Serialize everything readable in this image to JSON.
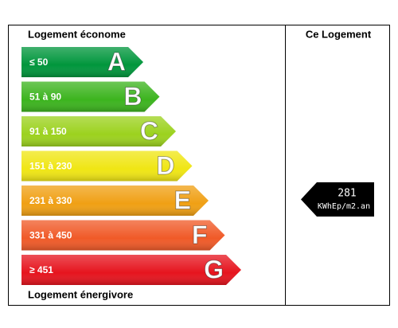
{
  "header": {
    "left": "Logement économe",
    "right": "Ce Logement"
  },
  "footer": "Logement énergivore",
  "classes": [
    {
      "range": "≤ 50",
      "letter": "A",
      "color": "#00963c"
    },
    {
      "range": "51 à 90",
      "letter": "B",
      "color": "#3cb41e"
    },
    {
      "range": "91 à 150",
      "letter": "C",
      "color": "#9cd21e"
    },
    {
      "range": "151 à 230",
      "letter": "D",
      "color": "#f0e614"
    },
    {
      "range": "231 à 330",
      "letter": "E",
      "color": "#f0a014"
    },
    {
      "range": "331 à 450",
      "letter": "F",
      "color": "#f05a28"
    },
    {
      "range": "≥  451",
      "letter": "G",
      "color": "#e6141e"
    }
  ],
  "current": {
    "value": 281,
    "unit": "KWhEp/m2.an"
  }
}
